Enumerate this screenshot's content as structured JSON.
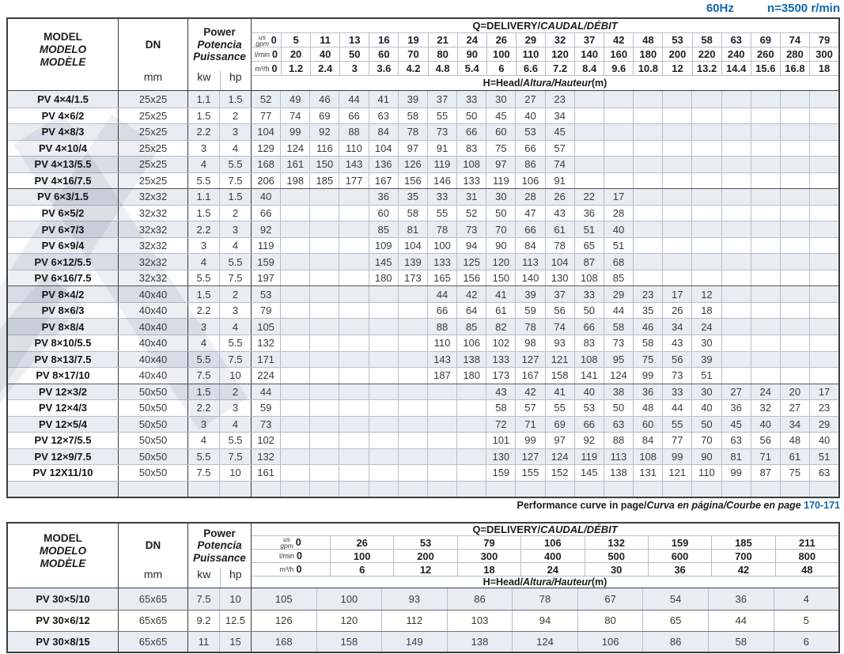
{
  "page": {
    "frequency": "60Hz",
    "speed": "n=3500 r/min",
    "accent_color": "#0f68af",
    "stripe_color": "#e8ecf3"
  },
  "labels": {
    "model_en": "MODEL",
    "model_es": "MODELO",
    "model_fr": "MODÈLE",
    "dn": "DN",
    "mm": "mm",
    "power_en": "Power",
    "power_es": "Potencia",
    "power_fr": "Puissance",
    "kw": "kw",
    "hp": "hp",
    "q_title_plain": "Q=DELIVERY/",
    "q_title_italic": "CAUDAL/DÉBIT",
    "h_title_plain": "H=Head/",
    "h_title_italic": "Altura/Hauteur",
    "h_title_unit": "(m)",
    "unit_gpm_top": "us",
    "unit_gpm": "gpm",
    "unit_lmin": "l/min",
    "unit_m3h": "m³/h"
  },
  "note": {
    "plain": "Performance curve in page/",
    "italic": "Curva en página/Courbe en page",
    "pages": "170-171"
  },
  "table1": {
    "gpm": [
      "0",
      "5",
      "11",
      "13",
      "16",
      "19",
      "21",
      "24",
      "26",
      "29",
      "32",
      "37",
      "42",
      "48",
      "53",
      "58",
      "63",
      "69",
      "74",
      "79"
    ],
    "lmin": [
      "0",
      "20",
      "40",
      "50",
      "60",
      "70",
      "80",
      "90",
      "100",
      "110",
      "120",
      "140",
      "160",
      "180",
      "200",
      "220",
      "240",
      "260",
      "280",
      "300"
    ],
    "m3h": [
      "0",
      "1.2",
      "2.4",
      "3",
      "3.6",
      "4.2",
      "4.8",
      "5.4",
      "6",
      "6.6",
      "7.2",
      "8.4",
      "9.6",
      "10.8",
      "12",
      "13.2",
      "14.4",
      "15.6",
      "16.8",
      "18"
    ],
    "group_breaks": [
      6,
      12,
      18
    ],
    "rows": [
      {
        "model": "PV 4×4/1.5",
        "dn": "25x25",
        "kw": "1.1",
        "hp": "1.5",
        "values": [
          "52",
          "49",
          "46",
          "44",
          "41",
          "39",
          "37",
          "33",
          "30",
          "27",
          "23",
          "",
          "",
          "",
          "",
          "",
          "",
          "",
          "",
          ""
        ]
      },
      {
        "model": "PV 4×6/2",
        "dn": "25x25",
        "kw": "1.5",
        "hp": "2",
        "values": [
          "77",
          "74",
          "69",
          "66",
          "63",
          "58",
          "55",
          "50",
          "45",
          "40",
          "34",
          "",
          "",
          "",
          "",
          "",
          "",
          "",
          "",
          ""
        ]
      },
      {
        "model": "PV 4×8/3",
        "dn": "25x25",
        "kw": "2.2",
        "hp": "3",
        "values": [
          "104",
          "99",
          "92",
          "88",
          "84",
          "78",
          "73",
          "66",
          "60",
          "53",
          "45",
          "",
          "",
          "",
          "",
          "",
          "",
          "",
          "",
          ""
        ]
      },
      {
        "model": "PV 4×10/4",
        "dn": "25x25",
        "kw": "3",
        "hp": "4",
        "values": [
          "129",
          "124",
          "116",
          "110",
          "104",
          "97",
          "91",
          "83",
          "75",
          "66",
          "57",
          "",
          "",
          "",
          "",
          "",
          "",
          "",
          "",
          ""
        ]
      },
      {
        "model": "PV 4×13/5.5",
        "dn": "25x25",
        "kw": "4",
        "hp": "5.5",
        "values": [
          "168",
          "161",
          "150",
          "143",
          "136",
          "126",
          "119",
          "108",
          "97",
          "86",
          "74",
          "",
          "",
          "",
          "",
          "",
          "",
          "",
          "",
          ""
        ]
      },
      {
        "model": "PV 4×16/7.5",
        "dn": "25x25",
        "kw": "5.5",
        "hp": "7.5",
        "values": [
          "206",
          "198",
          "185",
          "177",
          "167",
          "156",
          "146",
          "133",
          "119",
          "106",
          "91",
          "",
          "",
          "",
          "",
          "",
          "",
          "",
          "",
          ""
        ]
      },
      {
        "model": "PV 6×3/1.5",
        "dn": "32x32",
        "kw": "1.1",
        "hp": "1.5",
        "values": [
          "40",
          "",
          "",
          "",
          "36",
          "35",
          "33",
          "31",
          "30",
          "28",
          "26",
          "22",
          "17",
          "",
          "",
          "",
          "",
          "",
          "",
          ""
        ]
      },
      {
        "model": "PV 6×5/2",
        "dn": "32x32",
        "kw": "1.5",
        "hp": "2",
        "values": [
          "66",
          "",
          "",
          "",
          "60",
          "58",
          "55",
          "52",
          "50",
          "47",
          "43",
          "36",
          "28",
          "",
          "",
          "",
          "",
          "",
          "",
          ""
        ]
      },
      {
        "model": "PV 6×7/3",
        "dn": "32x32",
        "kw": "2.2",
        "hp": "3",
        "values": [
          "92",
          "",
          "",
          "",
          "85",
          "81",
          "78",
          "73",
          "70",
          "66",
          "61",
          "51",
          "40",
          "",
          "",
          "",
          "",
          "",
          "",
          ""
        ]
      },
      {
        "model": "PV 6×9/4",
        "dn": "32x32",
        "kw": "3",
        "hp": "4",
        "values": [
          "119",
          "",
          "",
          "",
          "109",
          "104",
          "100",
          "94",
          "90",
          "84",
          "78",
          "65",
          "51",
          "",
          "",
          "",
          "",
          "",
          "",
          ""
        ]
      },
      {
        "model": "PV 6×12/5.5",
        "dn": "32x32",
        "kw": "4",
        "hp": "5.5",
        "values": [
          "159",
          "",
          "",
          "",
          "145",
          "139",
          "133",
          "125",
          "120",
          "113",
          "104",
          "87",
          "68",
          "",
          "",
          "",
          "",
          "",
          "",
          ""
        ]
      },
      {
        "model": "PV 6×16/7.5",
        "dn": "32x32",
        "kw": "5.5",
        "hp": "7.5",
        "values": [
          "197",
          "",
          "",
          "",
          "180",
          "173",
          "165",
          "156",
          "150",
          "140",
          "130",
          "108",
          "85",
          "",
          "",
          "",
          "",
          "",
          "",
          ""
        ]
      },
      {
        "model": "PV 8×4/2",
        "dn": "40x40",
        "kw": "1.5",
        "hp": "2",
        "values": [
          "53",
          "",
          "",
          "",
          "",
          "",
          "44",
          "42",
          "41",
          "39",
          "37",
          "33",
          "29",
          "23",
          "17",
          "12",
          "",
          "",
          "",
          ""
        ]
      },
      {
        "model": "PV 8×6/3",
        "dn": "40x40",
        "kw": "2.2",
        "hp": "3",
        "values": [
          "79",
          "",
          "",
          "",
          "",
          "",
          "66",
          "64",
          "61",
          "59",
          "56",
          "50",
          "44",
          "35",
          "26",
          "18",
          "",
          "",
          "",
          ""
        ]
      },
      {
        "model": "PV 8×8/4",
        "dn": "40x40",
        "kw": "3",
        "hp": "4",
        "values": [
          "105",
          "",
          "",
          "",
          "",
          "",
          "88",
          "85",
          "82",
          "78",
          "74",
          "66",
          "58",
          "46",
          "34",
          "24",
          "",
          "",
          "",
          ""
        ]
      },
      {
        "model": "PV 8×10/5.5",
        "dn": "40x40",
        "kw": "4",
        "hp": "5.5",
        "values": [
          "132",
          "",
          "",
          "",
          "",
          "",
          "110",
          "106",
          "102",
          "98",
          "93",
          "83",
          "73",
          "58",
          "43",
          "30",
          "",
          "",
          "",
          ""
        ]
      },
      {
        "model": "PV 8×13/7.5",
        "dn": "40x40",
        "kw": "5.5",
        "hp": "7.5",
        "values": [
          "171",
          "",
          "",
          "",
          "",
          "",
          "143",
          "138",
          "133",
          "127",
          "121",
          "108",
          "95",
          "75",
          "56",
          "39",
          "",
          "",
          "",
          ""
        ]
      },
      {
        "model": "PV 8×17/10",
        "dn": "40x40",
        "kw": "7.5",
        "hp": "10",
        "values": [
          "224",
          "",
          "",
          "",
          "",
          "",
          "187",
          "180",
          "173",
          "167",
          "158",
          "141",
          "124",
          "99",
          "73",
          "51",
          "",
          "",
          "",
          ""
        ]
      },
      {
        "model": "PV 12×3/2",
        "dn": "50x50",
        "kw": "1.5",
        "hp": "2",
        "values": [
          "44",
          "",
          "",
          "",
          "",
          "",
          "",
          "",
          "43",
          "42",
          "41",
          "40",
          "38",
          "36",
          "33",
          "30",
          "27",
          "24",
          "20",
          "17"
        ]
      },
      {
        "model": "PV 12×4/3",
        "dn": "50x50",
        "kw": "2.2",
        "hp": "3",
        "values": [
          "59",
          "",
          "",
          "",
          "",
          "",
          "",
          "",
          "58",
          "57",
          "55",
          "53",
          "50",
          "48",
          "44",
          "40",
          "36",
          "32",
          "27",
          "23"
        ]
      },
      {
        "model": "PV 12×5/4",
        "dn": "50x50",
        "kw": "3",
        "hp": "4",
        "values": [
          "73",
          "",
          "",
          "",
          "",
          "",
          "",
          "",
          "72",
          "71",
          "69",
          "66",
          "63",
          "60",
          "55",
          "50",
          "45",
          "40",
          "34",
          "29"
        ]
      },
      {
        "model": "PV 12×7/5.5",
        "dn": "50x50",
        "kw": "4",
        "hp": "5.5",
        "values": [
          "102",
          "",
          "",
          "",
          "",
          "",
          "",
          "",
          "101",
          "99",
          "97",
          "92",
          "88",
          "84",
          "77",
          "70",
          "63",
          "56",
          "48",
          "40"
        ]
      },
      {
        "model": "PV 12×9/7.5",
        "dn": "50x50",
        "kw": "5.5",
        "hp": "7.5",
        "values": [
          "132",
          "",
          "",
          "",
          "",
          "",
          "",
          "",
          "130",
          "127",
          "124",
          "119",
          "113",
          "108",
          "99",
          "90",
          "81",
          "71",
          "61",
          "51"
        ]
      },
      {
        "model": "PV 12X11/10",
        "dn": "50x50",
        "kw": "7.5",
        "hp": "10",
        "values": [
          "161",
          "",
          "",
          "",
          "",
          "",
          "",
          "",
          "159",
          "155",
          "152",
          "145",
          "138",
          "131",
          "121",
          "110",
          "99",
          "87",
          "75",
          "63"
        ]
      },
      {
        "model": "",
        "dn": "",
        "kw": "",
        "hp": "",
        "values": [
          "",
          "",
          "",
          "",
          "",
          "",
          "",
          "",
          "",
          "",
          "",
          "",
          "",
          "",
          "",
          "",
          "",
          "",
          "",
          ""
        ]
      }
    ]
  },
  "table2": {
    "gpm": [
      "0",
      "26",
      "53",
      "79",
      "106",
      "132",
      "159",
      "185",
      "211"
    ],
    "lmin": [
      "0",
      "100",
      "200",
      "300",
      "400",
      "500",
      "600",
      "700",
      "800"
    ],
    "m3h": [
      "0",
      "6",
      "12",
      "18",
      "24",
      "30",
      "36",
      "42",
      "48"
    ],
    "group_breaks": [],
    "rows": [
      {
        "model": "PV 30×5/10",
        "dn": "65x65",
        "kw": "7.5",
        "hp": "10",
        "values": [
          "105",
          "100",
          "93",
          "86",
          "78",
          "67",
          "54",
          "36",
          "4"
        ]
      },
      {
        "model": "PV 30×6/12",
        "dn": "65x65",
        "kw": "9.2",
        "hp": "12.5",
        "values": [
          "126",
          "120",
          "112",
          "103",
          "94",
          "80",
          "65",
          "44",
          "5"
        ]
      },
      {
        "model": "PV 30×8/15",
        "dn": "65x65",
        "kw": "11",
        "hp": "15",
        "values": [
          "168",
          "158",
          "149",
          "138",
          "124",
          "106",
          "86",
          "58",
          "6"
        ]
      }
    ]
  }
}
